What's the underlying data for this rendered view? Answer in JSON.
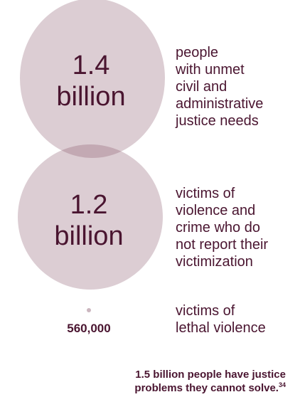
{
  "colors": {
    "circle_fill": "#dccdd3",
    "overlap_fill": "#c3a9b3",
    "dot_fill": "#cbb6bf",
    "text": "#4a1530"
  },
  "chart_data": {
    "type": "bubble",
    "items": [
      {
        "value": 1400000000,
        "number_label_line1": "1.4",
        "number_label_line2": "billion",
        "description": [
          "people",
          "with unmet",
          "civil and",
          "administrative",
          "justice needs"
        ]
      },
      {
        "value": 1200000000,
        "number_label_line1": "1.2",
        "number_label_line2": "billion",
        "description": [
          "victims of",
          "violence and",
          "crime who do",
          "not report their",
          "victimization"
        ]
      },
      {
        "value": 560000,
        "number_label": "560,000",
        "description": [
          "victims of",
          "lethal violence"
        ]
      }
    ]
  },
  "footnote": {
    "line1": "1.5 billion people have justice",
    "line2": "problems they cannot solve.",
    "ref": "34"
  }
}
